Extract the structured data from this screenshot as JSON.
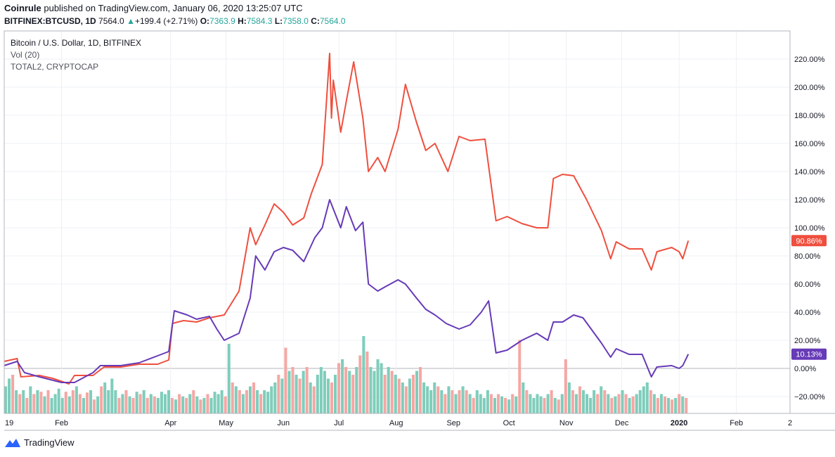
{
  "header": {
    "publisher": "Coinrule",
    "published_text": "published on TradingView.com, January 06, 2020 13:25:07 UTC",
    "symbol": "BITFINEX:BTCUSD, 1D",
    "last": "7564.0",
    "change_icon": "up-triangle-icon",
    "change": "+199.4 (+2.71%)",
    "o_label": "O:",
    "o_value": "7363.9",
    "h_label": "H:",
    "h_value": "7584.3",
    "l_label": "L:",
    "l_value": "7358.0",
    "c_label": "C:",
    "c_value": "7564.0"
  },
  "legend": {
    "line1": "Bitcoin / U.S. Dollar, 1D, BITFINEX",
    "line2": "Vol (20)",
    "line3": "TOTAL2, CRYPTOCAP"
  },
  "footer": {
    "logo_icon": "tradingview-logo-icon",
    "brand": "TradingView"
  },
  "colors": {
    "btc_line": "#ef4f3e",
    "total2_line": "#673ab7",
    "vol_up": "#7fcdbb",
    "vol_down": "#f4a8a4",
    "grid": "#eef0f4",
    "axis_text": "#131722"
  },
  "chart_data": {
    "type": "line",
    "x_unit": "date",
    "y_unit": "percent change",
    "ylim": [
      -30,
      230
    ],
    "xlim": [
      "2019-01-01",
      "2020-03-01"
    ],
    "y_ticks": [
      -20,
      0,
      20,
      40,
      60,
      80,
      100,
      120,
      140,
      160,
      180,
      200,
      220
    ],
    "y_tick_labels": [
      "−20.00%",
      "0.00%",
      "20.00%",
      "40.00%",
      "60.00%",
      "80.00%",
      "100.00%",
      "120.00%",
      "140.00%",
      "160.00%",
      "180.00%",
      "200.00%",
      "220.00%"
    ],
    "x_ticks": [
      {
        "date": "2019-01-01",
        "label": "19"
      },
      {
        "date": "2019-02-01",
        "label": "Feb"
      },
      {
        "date": "2019-04-01",
        "label": "Apr"
      },
      {
        "date": "2019-05-01",
        "label": "May"
      },
      {
        "date": "2019-06-01",
        "label": "Jun"
      },
      {
        "date": "2019-07-01",
        "label": "Jul"
      },
      {
        "date": "2019-08-01",
        "label": "Aug"
      },
      {
        "date": "2019-09-01",
        "label": "Sep"
      },
      {
        "date": "2019-10-01",
        "label": "Oct"
      },
      {
        "date": "2019-11-01",
        "label": "Nov"
      },
      {
        "date": "2019-12-01",
        "label": "Dec"
      },
      {
        "date": "2020-01-01",
        "label": "2020"
      },
      {
        "date": "2020-02-01",
        "label": "Feb"
      },
      {
        "date": "2020-03-01",
        "label": "2"
      }
    ],
    "series": [
      {
        "name": "Bitcoin / U.S. Dollar",
        "last_label": "90.86%",
        "points": [
          [
            "2019-01-01",
            5
          ],
          [
            "2019-01-08",
            7
          ],
          [
            "2019-01-10",
            -6
          ],
          [
            "2019-01-20",
            -5
          ],
          [
            "2019-01-27",
            -7
          ],
          [
            "2019-02-05",
            -11
          ],
          [
            "2019-02-08",
            -5
          ],
          [
            "2019-02-18",
            -5
          ],
          [
            "2019-02-24",
            1
          ],
          [
            "2019-03-05",
            1
          ],
          [
            "2019-03-15",
            3
          ],
          [
            "2019-03-25",
            3
          ],
          [
            "2019-03-31",
            6
          ],
          [
            "2019-04-02",
            32
          ],
          [
            "2019-04-08",
            34
          ],
          [
            "2019-04-15",
            33
          ],
          [
            "2019-04-22",
            36
          ],
          [
            "2019-04-30",
            38
          ],
          [
            "2019-05-08",
            55
          ],
          [
            "2019-05-14",
            100
          ],
          [
            "2019-05-17",
            88
          ],
          [
            "2019-05-22",
            102
          ],
          [
            "2019-05-27",
            117
          ],
          [
            "2019-06-01",
            111
          ],
          [
            "2019-06-06",
            102
          ],
          [
            "2019-06-12",
            107
          ],
          [
            "2019-06-16,",
            124
          ],
          [
            "2019-06-22",
            145
          ],
          [
            "2019-06-26",
            224
          ],
          [
            "2019-06-27",
            178
          ],
          [
            "2019-06-28",
            205
          ],
          [
            "2019-07-02",
            168
          ],
          [
            "2019-07-05",
            190
          ],
          [
            "2019-07-09",
            218
          ],
          [
            "2019-07-14",
            178
          ],
          [
            "2019-07-17",
            140
          ],
          [
            "2019-07-22",
            150
          ],
          [
            "2019-07-26",
            140
          ],
          [
            "2019-08-02",
            170
          ],
          [
            "2019-08-06",
            202
          ],
          [
            "2019-08-12",
            175
          ],
          [
            "2019-08-17",
            155
          ],
          [
            "2019-08-22",
            160
          ],
          [
            "2019-08-29",
            140
          ],
          [
            "2019-09-04",
            165
          ],
          [
            "2019-09-10",
            162
          ],
          [
            "2019-09-18",
            163
          ],
          [
            "2019-09-24",
            105
          ],
          [
            "2019-09-30",
            108
          ],
          [
            "2019-10-08",
            103
          ],
          [
            "2019-10-16",
            100
          ],
          [
            "2019-10-22",
            100
          ],
          [
            "2019-10-25",
            135
          ],
          [
            "2019-10-30",
            138
          ],
          [
            "2019-11-05",
            137
          ],
          [
            "2019-11-12",
            120
          ],
          [
            "2019-11-20",
            98
          ],
          [
            "2019-11-25",
            78
          ],
          [
            "2019-11-28",
            90
          ],
          [
            "2019-12-05",
            85
          ],
          [
            "2019-12-12",
            85
          ],
          [
            "2019-12-17",
            70
          ],
          [
            "2019-12-20",
            83
          ],
          [
            "2019-12-28",
            86
          ],
          [
            "2020-01-01",
            83
          ],
          [
            "2020-01-03",
            78
          ],
          [
            "2020-01-06",
            90.86
          ]
        ]
      },
      {
        "name": "TOTAL2, CRYPTOCAP",
        "last_label": "10.13%",
        "points": [
          [
            "2019-01-01",
            2
          ],
          [
            "2019-01-08",
            5
          ],
          [
            "2019-01-12",
            -3
          ],
          [
            "2019-01-20",
            -6
          ],
          [
            "2019-02-01",
            -10
          ],
          [
            "2019-02-08",
            -10
          ],
          [
            "2019-02-18",
            -3
          ],
          [
            "2019-02-22",
            2
          ],
          [
            "2019-03-05",
            2
          ],
          [
            "2019-03-15",
            4
          ],
          [
            "2019-03-25",
            9
          ],
          [
            "2019-03-31",
            12
          ],
          [
            "2019-04-03",
            41
          ],
          [
            "2019-04-10",
            38
          ],
          [
            "2019-04-15",
            35
          ],
          [
            "2019-04-22",
            37
          ],
          [
            "2019-04-26",
            28
          ],
          [
            "2019-04-30",
            20
          ],
          [
            "2019-05-08",
            25
          ],
          [
            "2019-05-14",
            50
          ],
          [
            "2019-05-17",
            80
          ],
          [
            "2019-05-22",
            70
          ],
          [
            "2019-05-27",
            83
          ],
          [
            "2019-06-01",
            86
          ],
          [
            "2019-06-06",
            84
          ],
          [
            "2019-06-12",
            76
          ],
          [
            "2019-06-18",
            93
          ],
          [
            "2019-06-22",
            100
          ],
          [
            "2019-06-26",
            120
          ],
          [
            "2019-07-02",
            100
          ],
          [
            "2019-07-05",
            115
          ],
          [
            "2019-07-10",
            98
          ],
          [
            "2019-07-14",
            104
          ],
          [
            "2019-07-17",
            60
          ],
          [
            "2019-07-22",
            55
          ],
          [
            "2019-07-26",
            58
          ],
          [
            "2019-08-02",
            63
          ],
          [
            "2019-08-06",
            60
          ],
          [
            "2019-08-12",
            50
          ],
          [
            "2019-08-17",
            42
          ],
          [
            "2019-08-22",
            38
          ],
          [
            "2019-08-28",
            32
          ],
          [
            "2019-09-04",
            28
          ],
          [
            "2019-09-10",
            31
          ],
          [
            "2019-09-16",
            40
          ],
          [
            "2019-09-20",
            48
          ],
          [
            "2019-09-24",
            11
          ],
          [
            "2019-09-30",
            13
          ],
          [
            "2019-10-08",
            20
          ],
          [
            "2019-10-16",
            25
          ],
          [
            "2019-10-22",
            20
          ],
          [
            "2019-10-25",
            33
          ],
          [
            "2019-10-30",
            33
          ],
          [
            "2019-11-05",
            38
          ],
          [
            "2019-11-10",
            36
          ],
          [
            "2019-11-20",
            18
          ],
          [
            "2019-11-25",
            8
          ],
          [
            "2019-11-28",
            14
          ],
          [
            "2019-12-05",
            10
          ],
          [
            "2019-12-12",
            10
          ],
          [
            "2019-12-17",
            -6
          ],
          [
            "2019-12-20",
            1
          ],
          [
            "2019-12-28",
            2
          ],
          [
            "2020-01-01",
            0
          ],
          [
            "2020-01-03",
            2
          ],
          [
            "2020-01-06",
            10.13
          ]
        ]
      }
    ],
    "volume": {
      "name": "Vol (20)",
      "note": "relative volume histogram along the bottom of the price pane, 0-1 relative scale, sign = up/down day",
      "values": [
        0.35,
        0.45,
        0.5,
        0.3,
        0.25,
        0.3,
        0.2,
        0.35,
        0.25,
        0.3,
        0.28,
        0.22,
        0.3,
        0.2,
        0.25,
        0.32,
        0.2,
        0.28,
        0.22,
        0.3,
        0.35,
        0.25,
        0.2,
        0.27,
        0.3,
        0.18,
        0.22,
        0.35,
        0.4,
        0.3,
        0.45,
        0.3,
        0.2,
        0.25,
        0.3,
        0.22,
        0.2,
        0.28,
        0.25,
        0.3,
        0.2,
        0.25,
        0.22,
        0.2,
        0.28,
        0.25,
        0.3,
        0.2,
        0.18,
        0.25,
        0.22,
        0.2,
        0.25,
        0.3,
        0.22,
        0.18,
        0.2,
        0.25,
        0.2,
        0.28,
        0.25,
        0.3,
        0.22,
        0.9,
        0.4,
        0.35,
        0.3,
        0.25,
        0.3,
        0.35,
        0.4,
        0.3,
        0.25,
        0.3,
        0.28,
        0.35,
        0.4,
        0.5,
        0.45,
        0.85,
        0.55,
        0.6,
        0.5,
        0.45,
        0.55,
        0.6,
        0.4,
        0.35,
        0.5,
        0.6,
        0.55,
        0.45,
        0.4,
        0.5,
        0.65,
        0.7,
        0.6,
        0.55,
        0.5,
        0.6,
        0.75,
        1.0,
        0.8,
        0.6,
        0.55,
        0.7,
        0.65,
        0.5,
        0.6,
        0.55,
        0.5,
        0.45,
        0.4,
        0.35,
        0.45,
        0.5,
        0.55,
        0.6,
        0.4,
        0.35,
        0.3,
        0.4,
        0.35,
        0.3,
        0.25,
        0.35,
        0.3,
        0.25,
        0.3,
        0.35,
        0.3,
        0.25,
        0.2,
        0.3,
        0.25,
        0.2,
        0.3,
        0.25,
        0.2,
        0.25,
        0.22,
        0.2,
        0.18,
        0.25,
        0.22,
        0.95,
        0.4,
        0.3,
        0.25,
        0.2,
        0.25,
        0.22,
        0.2,
        0.25,
        0.3,
        0.2,
        0.18,
        0.25,
        0.7,
        0.4,
        0.3,
        0.25,
        0.35,
        0.3,
        0.25,
        0.2,
        0.3,
        0.25,
        0.35,
        0.3,
        0.25,
        0.2,
        0.22,
        0.25,
        0.3,
        0.25,
        0.2,
        0.22,
        0.25,
        0.3,
        0.35,
        0.4,
        0.3,
        0.25,
        0.2,
        0.25,
        0.22,
        0.2,
        0.18,
        0.2,
        0.25,
        0.22,
        0.2
      ],
      "directions": "alternating mixed up/down"
    }
  }
}
